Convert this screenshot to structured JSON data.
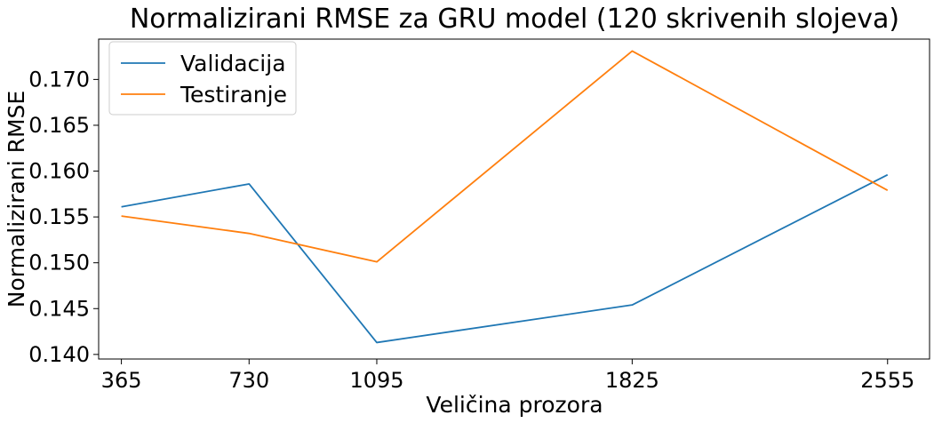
{
  "chart_data": {
    "type": "line",
    "title": "Normalizirani RMSE za GRU model (120 skrivenih slojeva)",
    "xlabel": "Veličina prozora",
    "ylabel": "Normalizirani RMSE",
    "x": [
      365,
      730,
      1095,
      1825,
      2555
    ],
    "x_ticks": [
      "365",
      "730",
      "1095",
      "1825",
      "2555"
    ],
    "y_ticks": [
      "0.140",
      "0.145",
      "0.150",
      "0.155",
      "0.160",
      "0.165",
      "0.170"
    ],
    "y_tick_values": [
      0.14,
      0.145,
      0.15,
      0.155,
      0.16,
      0.165,
      0.17
    ],
    "xlim": [
      300,
      2675
    ],
    "ylim": [
      0.1395,
      0.1744
    ],
    "grid": false,
    "legend_position": "top-left",
    "series": [
      {
        "name": "Validacija",
        "color": "#1f77b4",
        "values": [
          0.1561,
          0.1586,
          0.1413,
          0.1454,
          0.1596
        ]
      },
      {
        "name": "Testiranje",
        "color": "#ff7f0e",
        "values": [
          0.1551,
          0.1532,
          0.1501,
          0.1731,
          0.1579
        ]
      }
    ]
  }
}
